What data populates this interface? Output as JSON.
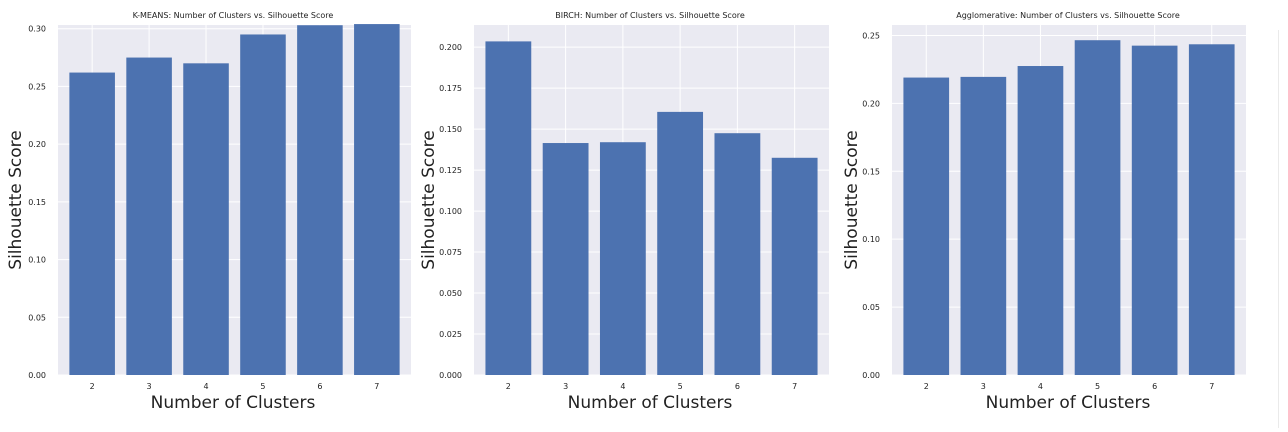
{
  "chart_data": [
    {
      "type": "bar",
      "title": "K-MEANS: Number of Clusters vs. Silhouette Score",
      "xlabel": "Number of Clusters",
      "ylabel": "Silhouette Score",
      "categories": [
        "2",
        "3",
        "4",
        "5",
        "6",
        "7"
      ],
      "values": [
        0.262,
        0.275,
        0.27,
        0.295,
        0.303,
        0.304
      ],
      "ylim": [
        0,
        0.3032
      ],
      "yticks": [
        0.0,
        0.05,
        0.1,
        0.15,
        0.2,
        0.25,
        0.3
      ],
      "ytick_labels": [
        "0.00",
        "0.05",
        "0.10",
        "0.15",
        "0.20",
        "0.25",
        "0.30"
      ],
      "grid": true,
      "bar_color": "#4c72b0",
      "plot_background": "#eaeaf2"
    },
    {
      "type": "bar",
      "title": "BIRCH: Number of Clusters vs. Silhouette Score",
      "xlabel": "Number of Clusters",
      "ylabel": "Silhouette Score",
      "categories": [
        "2",
        "3",
        "4",
        "5",
        "6",
        "7"
      ],
      "values": [
        0.2035,
        0.1415,
        0.142,
        0.1605,
        0.1475,
        0.1325
      ],
      "ylim": [
        0,
        0.2135
      ],
      "yticks": [
        0.0,
        0.025,
        0.05,
        0.075,
        0.1,
        0.125,
        0.15,
        0.175,
        0.2
      ],
      "ytick_labels": [
        "0.000",
        "0.025",
        "0.050",
        "0.075",
        "0.100",
        "0.125",
        "0.150",
        "0.175",
        "0.200"
      ],
      "grid": true,
      "bar_color": "#4c72b0",
      "plot_background": "#eaeaf2"
    },
    {
      "type": "bar",
      "title": "Agglomerative: Number of Clusters vs. Silhouette Score",
      "xlabel": "Number of Clusters",
      "ylabel": "Silhouette Score",
      "categories": [
        "2",
        "3",
        "4",
        "5",
        "6",
        "7"
      ],
      "values": [
        0.219,
        0.2195,
        0.2275,
        0.2465,
        0.2425,
        0.2435
      ],
      "ylim": [
        0,
        0.2577
      ],
      "yticks": [
        0.0,
        0.05,
        0.1,
        0.15,
        0.2,
        0.25
      ],
      "ytick_labels": [
        "0.00",
        "0.05",
        "0.10",
        "0.15",
        "0.20",
        "0.25"
      ],
      "grid": true,
      "bar_color": "#4c72b0",
      "plot_background": "#eaeaf2"
    }
  ]
}
